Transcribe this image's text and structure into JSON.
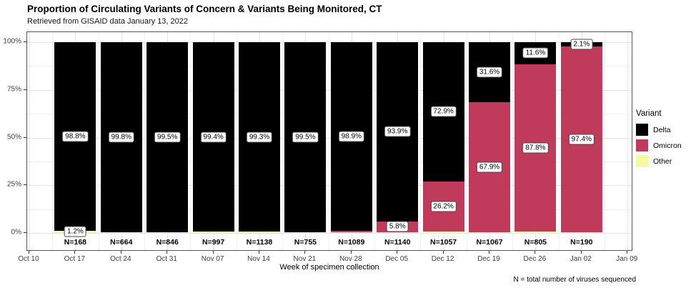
{
  "title": "Proportion of Circulating Variants of Concern & Variants Being Monitored, CT",
  "subtitle": "Retrieved from GISAID data January 13, 2022",
  "footnote": "N = total number of viruses sequenced",
  "legend": {
    "title": "Variant",
    "items": [
      {
        "label": "Delta",
        "color": "#000000"
      },
      {
        "label": "Omicron",
        "color": "#C03A5C"
      },
      {
        "label": "Other",
        "color": "#F7F8A2"
      }
    ]
  },
  "chart_data": {
    "type": "bar",
    "stacked": true,
    "title": "Proportion of Circulating Variants of Concern & Variants Being Monitored, CT",
    "xlabel": "Week of specimen collection",
    "ylabel": "",
    "ylim": [
      0,
      100
    ],
    "grid": true,
    "legend_position": "right",
    "y_tick_values": [
      0,
      25,
      50,
      75,
      100
    ],
    "y_ticks": [
      "0%",
      "25%",
      "50%",
      "75%",
      "100%"
    ],
    "x_ticks": [
      "Oct 10",
      "Oct 17",
      "Oct 24",
      "Oct 31",
      "Nov 07",
      "Nov 14",
      "Nov 21",
      "Nov 28",
      "Dec 05",
      "Dec 12",
      "Dec 19",
      "Dec 26",
      "Jan 02",
      "Jan 09"
    ],
    "stack_order": [
      "other",
      "omicron",
      "delta"
    ],
    "colors": {
      "delta": "#000000",
      "omicron": "#C03A5C",
      "other": "#F7F8A2"
    },
    "bars": [
      {
        "week": "Oct 17",
        "n": "N=168",
        "delta": 98.8,
        "omicron": 0.0,
        "other": 1.2,
        "delta_label": "98.8%",
        "other_label": "1.2%"
      },
      {
        "week": "Oct 24",
        "n": "N=664",
        "delta": 99.8,
        "omicron": 0.0,
        "other": 0.2,
        "delta_label": "99.8%"
      },
      {
        "week": "Oct 31",
        "n": "N=846",
        "delta": 99.5,
        "omicron": 0.0,
        "other": 0.5,
        "delta_label": "99.5%"
      },
      {
        "week": "Nov 07",
        "n": "N=997",
        "delta": 99.4,
        "omicron": 0.0,
        "other": 0.6,
        "delta_label": "99.4%"
      },
      {
        "week": "Nov 14",
        "n": "N=1138",
        "delta": 99.3,
        "omicron": 0.0,
        "other": 0.7,
        "delta_label": "99.3%"
      },
      {
        "week": "Nov 21",
        "n": "N=755",
        "delta": 99.5,
        "omicron": 0.0,
        "other": 0.5,
        "delta_label": "99.5%"
      },
      {
        "week": "Nov 28",
        "n": "N=1089",
        "delta": 98.9,
        "omicron": 0.8,
        "other": 0.3,
        "delta_label": "98.9%"
      },
      {
        "week": "Dec 05",
        "n": "N=1140",
        "delta": 93.9,
        "omicron": 5.8,
        "other": 0.3,
        "delta_label": "93.9%",
        "omicron_label": "5.8%"
      },
      {
        "week": "Dec 12",
        "n": "N=1057",
        "delta": 72.9,
        "omicron": 26.2,
        "other": 0.9,
        "delta_label": "72.9%",
        "omicron_label": "26.2%"
      },
      {
        "week": "Dec 19",
        "n": "N=1067",
        "delta": 31.6,
        "omicron": 67.9,
        "other": 0.5,
        "delta_label": "31.6%",
        "omicron_label": "67.9%"
      },
      {
        "week": "Dec 26",
        "n": "N=805",
        "delta": 11.6,
        "omicron": 87.8,
        "other": 0.6,
        "delta_label": "11.6%",
        "omicron_label": "87.8%"
      },
      {
        "week": "Jan 02",
        "n": "N=190",
        "delta": 2.1,
        "omicron": 97.4,
        "other": 0.5,
        "delta_label": "2.1%",
        "omicron_label": "97.4%"
      }
    ]
  }
}
